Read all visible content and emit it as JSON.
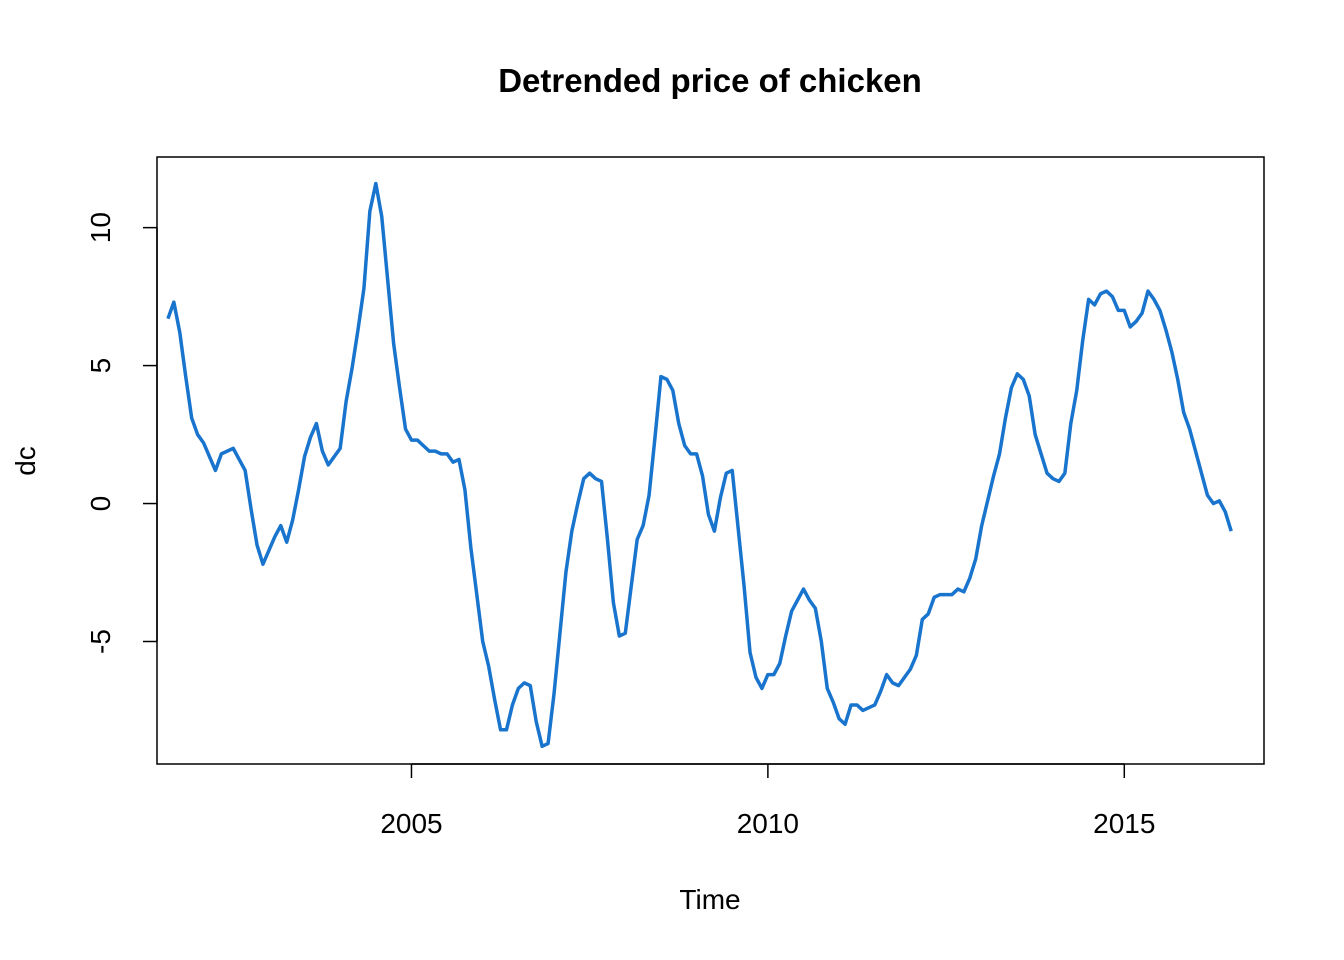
{
  "chart_data": {
    "type": "line",
    "title": "Detrended price of chicken",
    "xlabel": "Time",
    "ylabel": "dc",
    "xlim": [
      2001.43,
      2016.96
    ],
    "ylim": [
      -9.44,
      12.56
    ],
    "x_ticks": [
      2005,
      2010,
      2015
    ],
    "x_tick_labels": [
      "2005",
      "2010",
      "2015"
    ],
    "y_ticks": [
      -5,
      0,
      5,
      10
    ],
    "y_tick_labels": [
      "-5",
      "0",
      "5",
      "10"
    ],
    "grid": false,
    "line_color": "#1874CD",
    "series": [
      {
        "x_start": 2001.583,
        "x_step": 0.0833333,
        "values": [
          6.7,
          7.3,
          6.2,
          4.6,
          3.1,
          2.5,
          2.2,
          1.7,
          1.2,
          1.8,
          1.9,
          2.0,
          1.6,
          1.2,
          -0.2,
          -1.5,
          -2.2,
          -1.7,
          -1.2,
          -0.8,
          -1.4,
          -0.6,
          0.5,
          1.7,
          2.4,
          2.9,
          1.9,
          1.4,
          1.7,
          2.0,
          3.7,
          4.9,
          6.3,
          7.8,
          10.6,
          11.6,
          10.4,
          8.1,
          5.8,
          4.2,
          2.7,
          2.3,
          2.3,
          2.1,
          1.9,
          1.9,
          1.8,
          1.8,
          1.5,
          1.6,
          0.5,
          -1.6,
          -3.3,
          -5.0,
          -5.9,
          -7.1,
          -8.2,
          -8.2,
          -7.3,
          -6.7,
          -6.5,
          -6.6,
          -7.9,
          -8.8,
          -8.7,
          -6.9,
          -4.7,
          -2.5,
          -1.0,
          0.0,
          0.9,
          1.1,
          0.9,
          0.8,
          -1.3,
          -3.6,
          -4.8,
          -4.7,
          -3.0,
          -1.3,
          -0.8,
          0.3,
          2.4,
          4.6,
          4.5,
          4.1,
          2.9,
          2.1,
          1.8,
          1.8,
          1.0,
          -0.4,
          -1.0,
          0.2,
          1.1,
          1.2,
          -0.9,
          -3.0,
          -5.4,
          -6.3,
          -6.7,
          -6.2,
          -6.2,
          -5.8,
          -4.8,
          -3.9,
          -3.5,
          -3.1,
          -3.5,
          -3.8,
          -5.0,
          -6.7,
          -7.2,
          -7.8,
          -8.0,
          -7.3,
          -7.3,
          -7.5,
          -7.4,
          -7.3,
          -6.8,
          -6.2,
          -6.5,
          -6.6,
          -6.3,
          -6.0,
          -5.5,
          -4.2,
          -4.0,
          -3.4,
          -3.3,
          -3.3,
          -3.3,
          -3.1,
          -3.2,
          -2.7,
          -2.0,
          -0.8,
          0.1,
          1.0,
          1.8,
          3.1,
          4.2,
          4.7,
          4.5,
          3.9,
          2.5,
          1.8,
          1.1,
          0.9,
          0.8,
          1.1,
          2.9,
          4.1,
          5.9,
          7.4,
          7.2,
          7.6,
          7.7,
          7.5,
          7.0,
          7.0,
          6.4,
          6.6,
          6.9,
          7.7,
          7.4,
          7.0,
          6.3,
          5.5,
          4.5,
          3.3,
          2.7,
          1.9,
          1.1,
          0.3,
          0.0,
          0.1,
          -0.3,
          -1.0
        ]
      }
    ]
  }
}
